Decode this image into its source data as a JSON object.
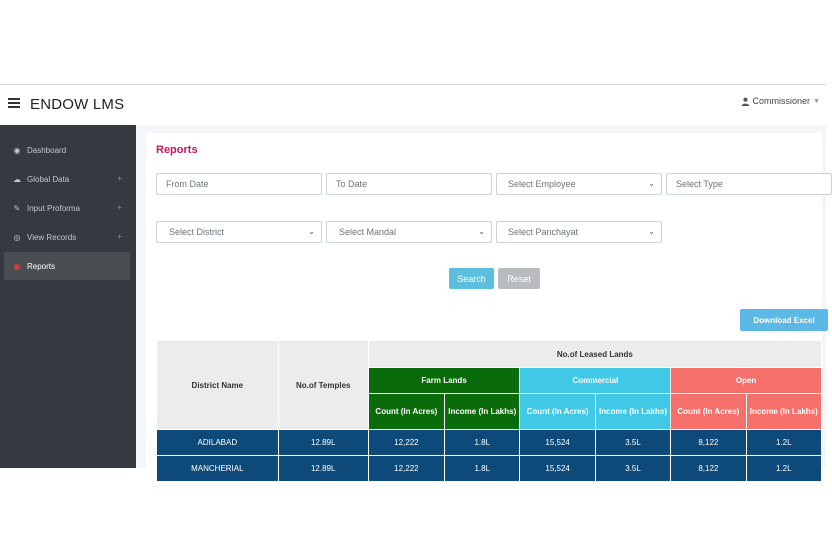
{
  "app": {
    "title": "ENDOW LMS",
    "user": "Commissioner"
  },
  "sidebar": {
    "items": [
      {
        "label": "Dashboard",
        "icon": "tachometer-icon"
      },
      {
        "label": "Global Data",
        "icon": "cloud-icon",
        "expand": "+"
      },
      {
        "label": "Input Proforma",
        "icon": "edit-icon",
        "expand": "+"
      },
      {
        "label": "View Records",
        "icon": "eye-icon",
        "expand": "+"
      },
      {
        "label": "Reports",
        "icon": "pdf-file-icon"
      }
    ]
  },
  "reports": {
    "title": "Reports",
    "filters": {
      "from_date": "From Date",
      "to_date": "To Date",
      "employee": "Select Employee",
      "type": "Select Type",
      "district": "Select District",
      "mandal": "Select Mandal",
      "panchayat": "Select Panchayat"
    },
    "search_label": "Search",
    "reset_label": "Reset",
    "download_label": "Download Excel"
  },
  "table": {
    "col_district": "District Name",
    "col_temples": "No.of Temples",
    "group_header": "No.of Leased Lands",
    "farm": "Farm Lands",
    "commercial": "Commercial",
    "open": "Open",
    "count_label": "Count (In Acres)",
    "income_label": "Income (In Lakhs)",
    "rows": [
      {
        "district": "ADILABAD",
        "temples": "12.89L",
        "farm_count": "12,222",
        "farm_income": "1.8L",
        "comm_count": "15,524",
        "comm_income": "3.5L",
        "open_count": "8,122",
        "open_income": "1.2L"
      },
      {
        "district": "MANCHERIAL",
        "temples": "12.89L",
        "farm_count": "12,222",
        "farm_income": "1.8L",
        "comm_count": "15,524",
        "comm_income": "3.5L",
        "open_count": "8,122",
        "open_income": "1.2L"
      }
    ]
  },
  "colors": {
    "accent": "#c2185b",
    "sidebar": "#343a40",
    "farm": "#0a6b0a",
    "commercial": "#41c8e6",
    "open": "#f5706a",
    "row": "#0d4a7a"
  }
}
